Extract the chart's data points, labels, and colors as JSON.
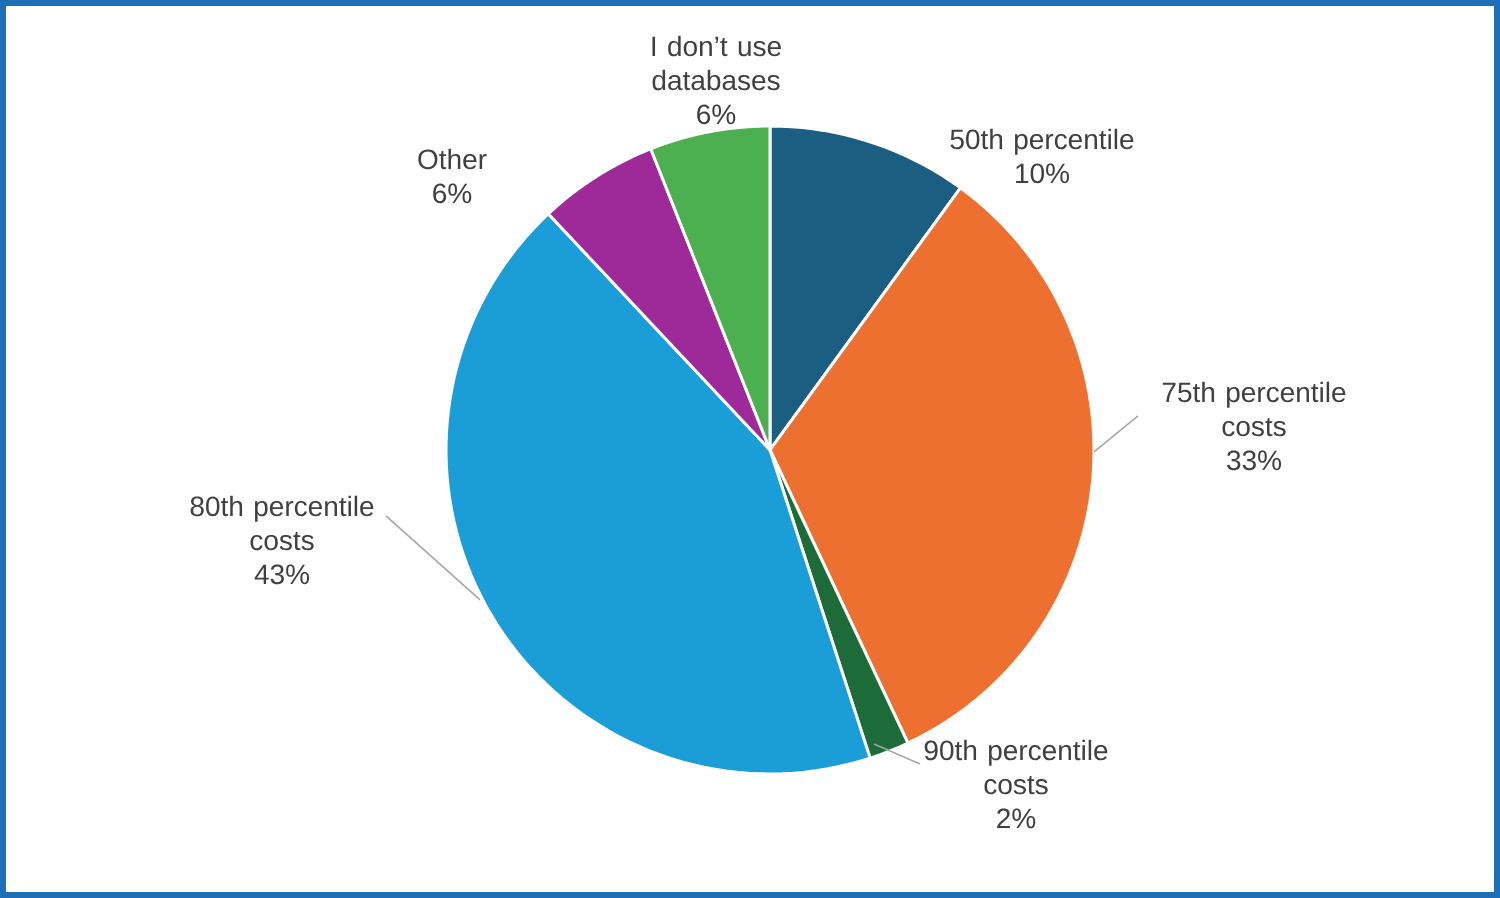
{
  "chart_data": {
    "type": "pie",
    "categories": [
      "50th percentile",
      "75th percentile costs",
      "90th percentile costs",
      "80th percentile costs",
      "Other",
      "I don’t use databases"
    ],
    "values": [
      10,
      33,
      2,
      43,
      6,
      6
    ],
    "value_labels": [
      "10%",
      "33%",
      "2%",
      "43%",
      "6%",
      "6%"
    ],
    "colors": [
      "#1b5e82",
      "#ed7030",
      "#1e6b3a",
      "#1b9dd8",
      "#9e2a9a",
      "#4caf50"
    ]
  }
}
